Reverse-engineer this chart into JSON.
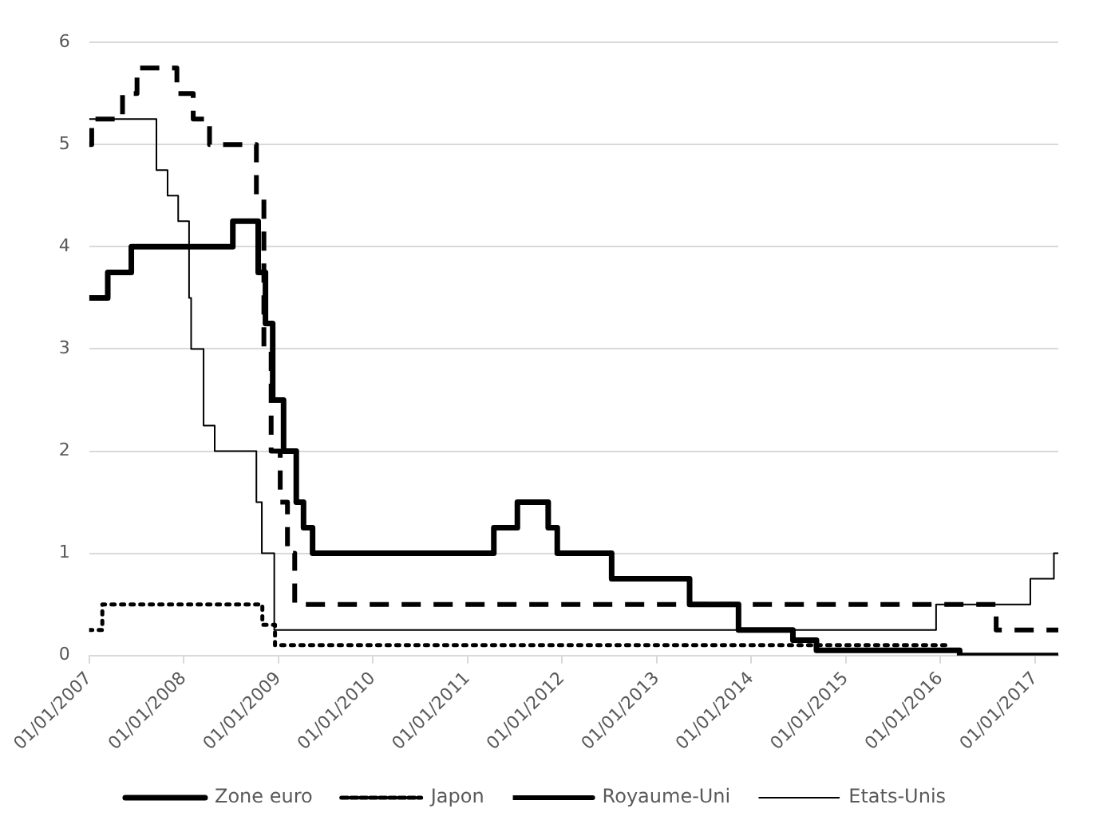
{
  "chart_data": {
    "type": "step",
    "xlim": [
      "2007-01-01",
      "2017-04-01"
    ],
    "xticks": [
      {
        "value": "2007-01-01",
        "label": "01/01/2007"
      },
      {
        "value": "2008-01-01",
        "label": "01/01/2008"
      },
      {
        "value": "2009-01-01",
        "label": "01/01/2009"
      },
      {
        "value": "2010-01-01",
        "label": "01/01/2010"
      },
      {
        "value": "2011-01-01",
        "label": "01/01/2011"
      },
      {
        "value": "2012-01-01",
        "label": "01/01/2012"
      },
      {
        "value": "2013-01-01",
        "label": "01/01/2013"
      },
      {
        "value": "2014-01-01",
        "label": "01/01/2014"
      },
      {
        "value": "2015-01-01",
        "label": "01/01/2015"
      },
      {
        "value": "2016-01-01",
        "label": "01/01/2016"
      },
      {
        "value": "2017-01-01",
        "label": "01/01/2017"
      }
    ],
    "ylim": [
      0,
      6
    ],
    "yticks": [
      0,
      1,
      2,
      3,
      4,
      5,
      6
    ],
    "grid": "y",
    "legend": "bottom",
    "series": [
      {
        "name": "Zone euro",
        "color": "#000000",
        "line_style": "solid",
        "x": [
          "2007-01-01",
          "2007-03-14",
          "2007-06-13",
          "2008-07-09",
          "2008-10-15",
          "2008-11-12",
          "2008-12-10",
          "2009-01-21",
          "2009-03-11",
          "2009-04-08",
          "2009-05-13",
          "2011-04-13",
          "2011-07-13",
          "2011-11-09",
          "2011-12-14",
          "2012-07-11",
          "2013-05-08",
          "2013-11-13",
          "2014-06-11",
          "2014-09-10",
          "2016-03-16",
          "2017-04-01"
        ],
        "values": [
          3.5,
          3.75,
          4.0,
          4.25,
          3.75,
          3.25,
          2.5,
          2.0,
          1.5,
          1.25,
          1.0,
          1.25,
          1.5,
          1.25,
          1.0,
          0.75,
          0.5,
          0.25,
          0.15,
          0.05,
          0,
          0
        ]
      },
      {
        "name": "Japon",
        "color": "#000000",
        "line_style": "dotted",
        "x": [
          "2007-01-01",
          "2007-02-21",
          "2008-10-31",
          "2008-12-19",
          "2016-01-29"
        ],
        "values": [
          0.25,
          0.5,
          0.3,
          0.1,
          0.1
        ]
      },
      {
        "name": "Royaume-Uni",
        "color": "#000000",
        "line_style": "dashed",
        "x": [
          "2007-01-01",
          "2007-01-11",
          "2007-05-10",
          "2007-07-05",
          "2007-12-06",
          "2008-02-07",
          "2008-04-10",
          "2008-10-08",
          "2008-11-06",
          "2008-12-04",
          "2009-01-08",
          "2009-02-05",
          "2009-03-05",
          "2016-08-04",
          "2017-04-01"
        ],
        "values": [
          5.0,
          5.25,
          5.5,
          5.75,
          5.5,
          5.25,
          5.0,
          4.5,
          3.0,
          2.0,
          1.5,
          1.0,
          0.5,
          0.25,
          0.25
        ]
      },
      {
        "name": "Etats-Unis",
        "color": "#000000",
        "line_style": "solid",
        "x": [
          "2007-01-01",
          "2007-09-18",
          "2007-10-31",
          "2007-12-11",
          "2008-01-22",
          "2008-01-30",
          "2008-03-18",
          "2008-04-30",
          "2008-10-08",
          "2008-10-29",
          "2008-12-16",
          "2015-12-16",
          "2016-12-14",
          "2017-03-15",
          "2017-04-01"
        ],
        "values": [
          5.25,
          4.75,
          4.5,
          4.25,
          3.5,
          3.0,
          2.25,
          2.0,
          1.5,
          1.0,
          0.25,
          0.5,
          0.75,
          1.0,
          1.0
        ]
      }
    ]
  }
}
